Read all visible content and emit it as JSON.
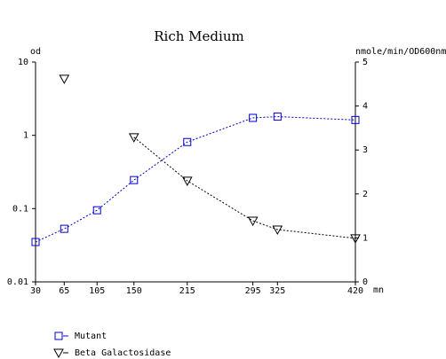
{
  "chart_data": {
    "type": "line",
    "title": "Rich Medium",
    "xlabel": "mn",
    "ylabel": "od",
    "y2label": "nmole/min/OD600nm",
    "x": [
      30,
      65,
      105,
      150,
      215,
      295,
      325,
      420
    ],
    "xlim": [
      30,
      420
    ],
    "xticks": [
      30,
      65,
      105,
      150,
      215,
      295,
      325,
      420
    ],
    "ylim": [
      0.01,
      10
    ],
    "yticks": [
      0.01,
      0.1,
      1,
      10
    ],
    "ylog": true,
    "y2lim": [
      0,
      5
    ],
    "y2ticks": [
      0,
      1,
      2,
      3,
      4,
      5
    ],
    "series": [
      {
        "name": "Mutant",
        "color": "#0000cc",
        "marker": "square",
        "values": [
          0.035,
          0.053,
          0.095,
          0.245,
          0.81,
          1.73,
          1.8,
          1.62
        ]
      },
      {
        "name": "Beta Galactosidase",
        "color": "#000000",
        "marker": "triangle-down",
        "axis": "y2",
        "values": [
          null,
          4.62,
          null,
          3.29,
          2.3,
          1.39,
          1.19,
          0.99
        ]
      }
    ]
  }
}
